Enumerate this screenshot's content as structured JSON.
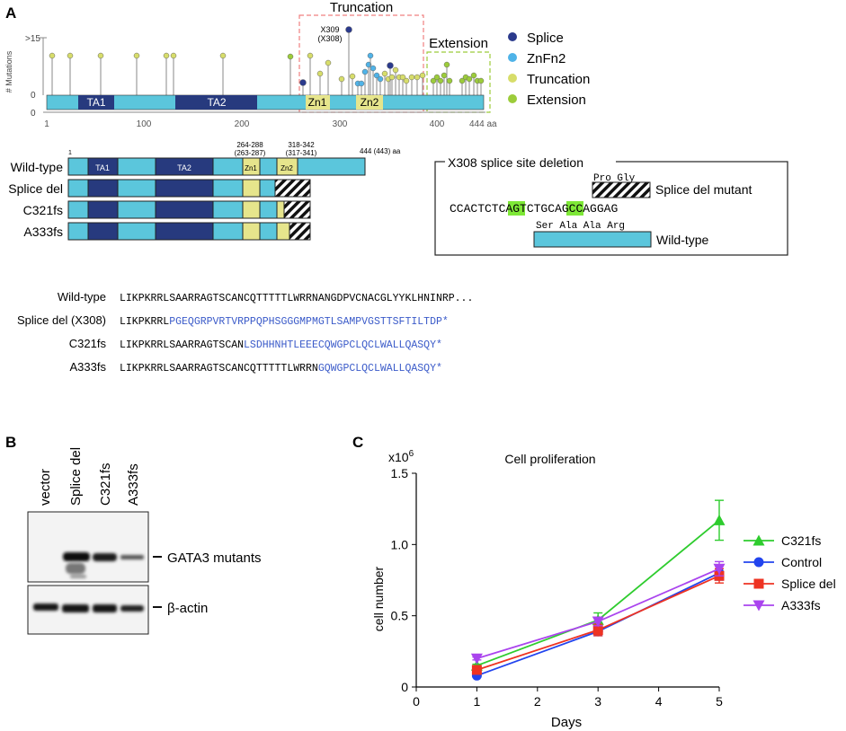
{
  "panels": {
    "a": "A",
    "b": "B",
    "c": "C"
  },
  "lollipop": {
    "truncation_title": "Truncation",
    "extension_title": "Extension",
    "y_label": "# Mutations",
    "y_top": ">15",
    "y_zero": "0",
    "x_zero": "0",
    "x_ticks": [
      "1",
      "100",
      "200",
      "300",
      "400",
      "444 aa"
    ],
    "domains": [
      "TA1",
      "TA2",
      "Zn1",
      "Zn2"
    ],
    "hotspot_label_1": "X309",
    "hotspot_label_2": "(X308)",
    "legend": [
      {
        "label": "Splice",
        "color": "#2b3a8c"
      },
      {
        "label": "ZnFn2",
        "color": "#4fb3e8"
      },
      {
        "label": "Truncation",
        "color": "#d7dd6a"
      },
      {
        "label": "Extension",
        "color": "#9ccc3a"
      }
    ],
    "colors": {
      "splice": "#2b3a8c",
      "znfn2": "#4fb3e8",
      "truncation": "#d7dd6a",
      "extension": "#9ccc3a",
      "protein": "#5bc6dc",
      "ta": "#273a7e",
      "zn": "#e6e58c"
    }
  },
  "constructs": {
    "pos_start": "1",
    "pos_zn1": "264-288",
    "pos_zn1_alt": "(263-287)",
    "pos_zn2": "318-342",
    "pos_zn2_alt": "(317-341)",
    "pos_end": "444 (443) aa",
    "rows": [
      "Wild-type",
      "Splice del",
      "C321fs",
      "A333fs"
    ],
    "domains": [
      "TA1",
      "TA2",
      "Zn1",
      "Zn2"
    ]
  },
  "splice_box": {
    "title": "X308 splice site deletion",
    "mutant_aa": "Pro Gly",
    "mutant_label": "Splice del mutant",
    "seq_a": "CCACTCT",
    "seq_b": "CA",
    "seq_c": "GTCTG",
    "seq_d": "CA",
    "seq_e": "GCCAGGAG",
    "wt_aa": "Ser Ala Ala Arg",
    "wt_label": "Wild-type"
  },
  "sequences": [
    {
      "name": "Wild-type",
      "common": "LIKPKRRLSAARRAGTSCANCQTTTTTLWRRNANGDPVCNACGLYYKLHNINRP...",
      "mutant": ""
    },
    {
      "name": "Splice del (X308)",
      "common": "LIKPKRRL",
      "mutant": "PGEQGRPVRTVRPPQPHSGGGMPMGTLSAMPVGSTTSFTILTDP*"
    },
    {
      "name": "C321fs",
      "common": "LIKPKRRLSAARRAGTSCAN",
      "mutant": "LSDHHNHTLEEECQWGPCLQCLWALLQASQY*"
    },
    {
      "name": "A333fs",
      "common": "LIKPKRRLSAARRAGTSCANCQTTTTTLWRRN",
      "mutant": "GQWGPCLQCLWALLQASQY*"
    }
  ],
  "western": {
    "lanes": [
      "vector",
      "Splice del",
      "C321fs",
      "A333fs"
    ],
    "band_label_1": "GATA3 mutants",
    "band_label_2": "β-actin"
  },
  "chart_data": {
    "type": "line",
    "title": "Cell proliferation",
    "xlabel": "Days",
    "ylabel": "cell number",
    "y_multiplier": "x10",
    "y_multiplier_exp": "6",
    "x": [
      1,
      3,
      5
    ],
    "xlim": [
      0,
      5
    ],
    "ylim": [
      0,
      1.5
    ],
    "x_ticks": [
      "0",
      "1",
      "2",
      "3",
      "4",
      "5"
    ],
    "y_ticks": [
      "0",
      "0.5",
      "1.0",
      "1.5"
    ],
    "legend_position": "right",
    "series": [
      {
        "name": "C321fs",
        "values": [
          0.15,
          0.47,
          1.17
        ],
        "errors": [
          0.01,
          0.05,
          0.14
        ],
        "color": "#2ecc2e",
        "marker": "triangle-up"
      },
      {
        "name": "Control",
        "values": [
          0.08,
          0.39,
          0.8
        ],
        "errors": [
          0.01,
          0.03,
          0.05
        ],
        "color": "#2244ee",
        "marker": "circle"
      },
      {
        "name": "Splice del",
        "values": [
          0.12,
          0.4,
          0.78
        ],
        "errors": [
          0.01,
          0.04,
          0.05
        ],
        "color": "#ee3322",
        "marker": "square"
      },
      {
        "name": "A333fs",
        "values": [
          0.2,
          0.46,
          0.83
        ],
        "errors": [
          0.01,
          0.03,
          0.05
        ],
        "color": "#aa44ee",
        "marker": "triangle-down"
      }
    ]
  }
}
